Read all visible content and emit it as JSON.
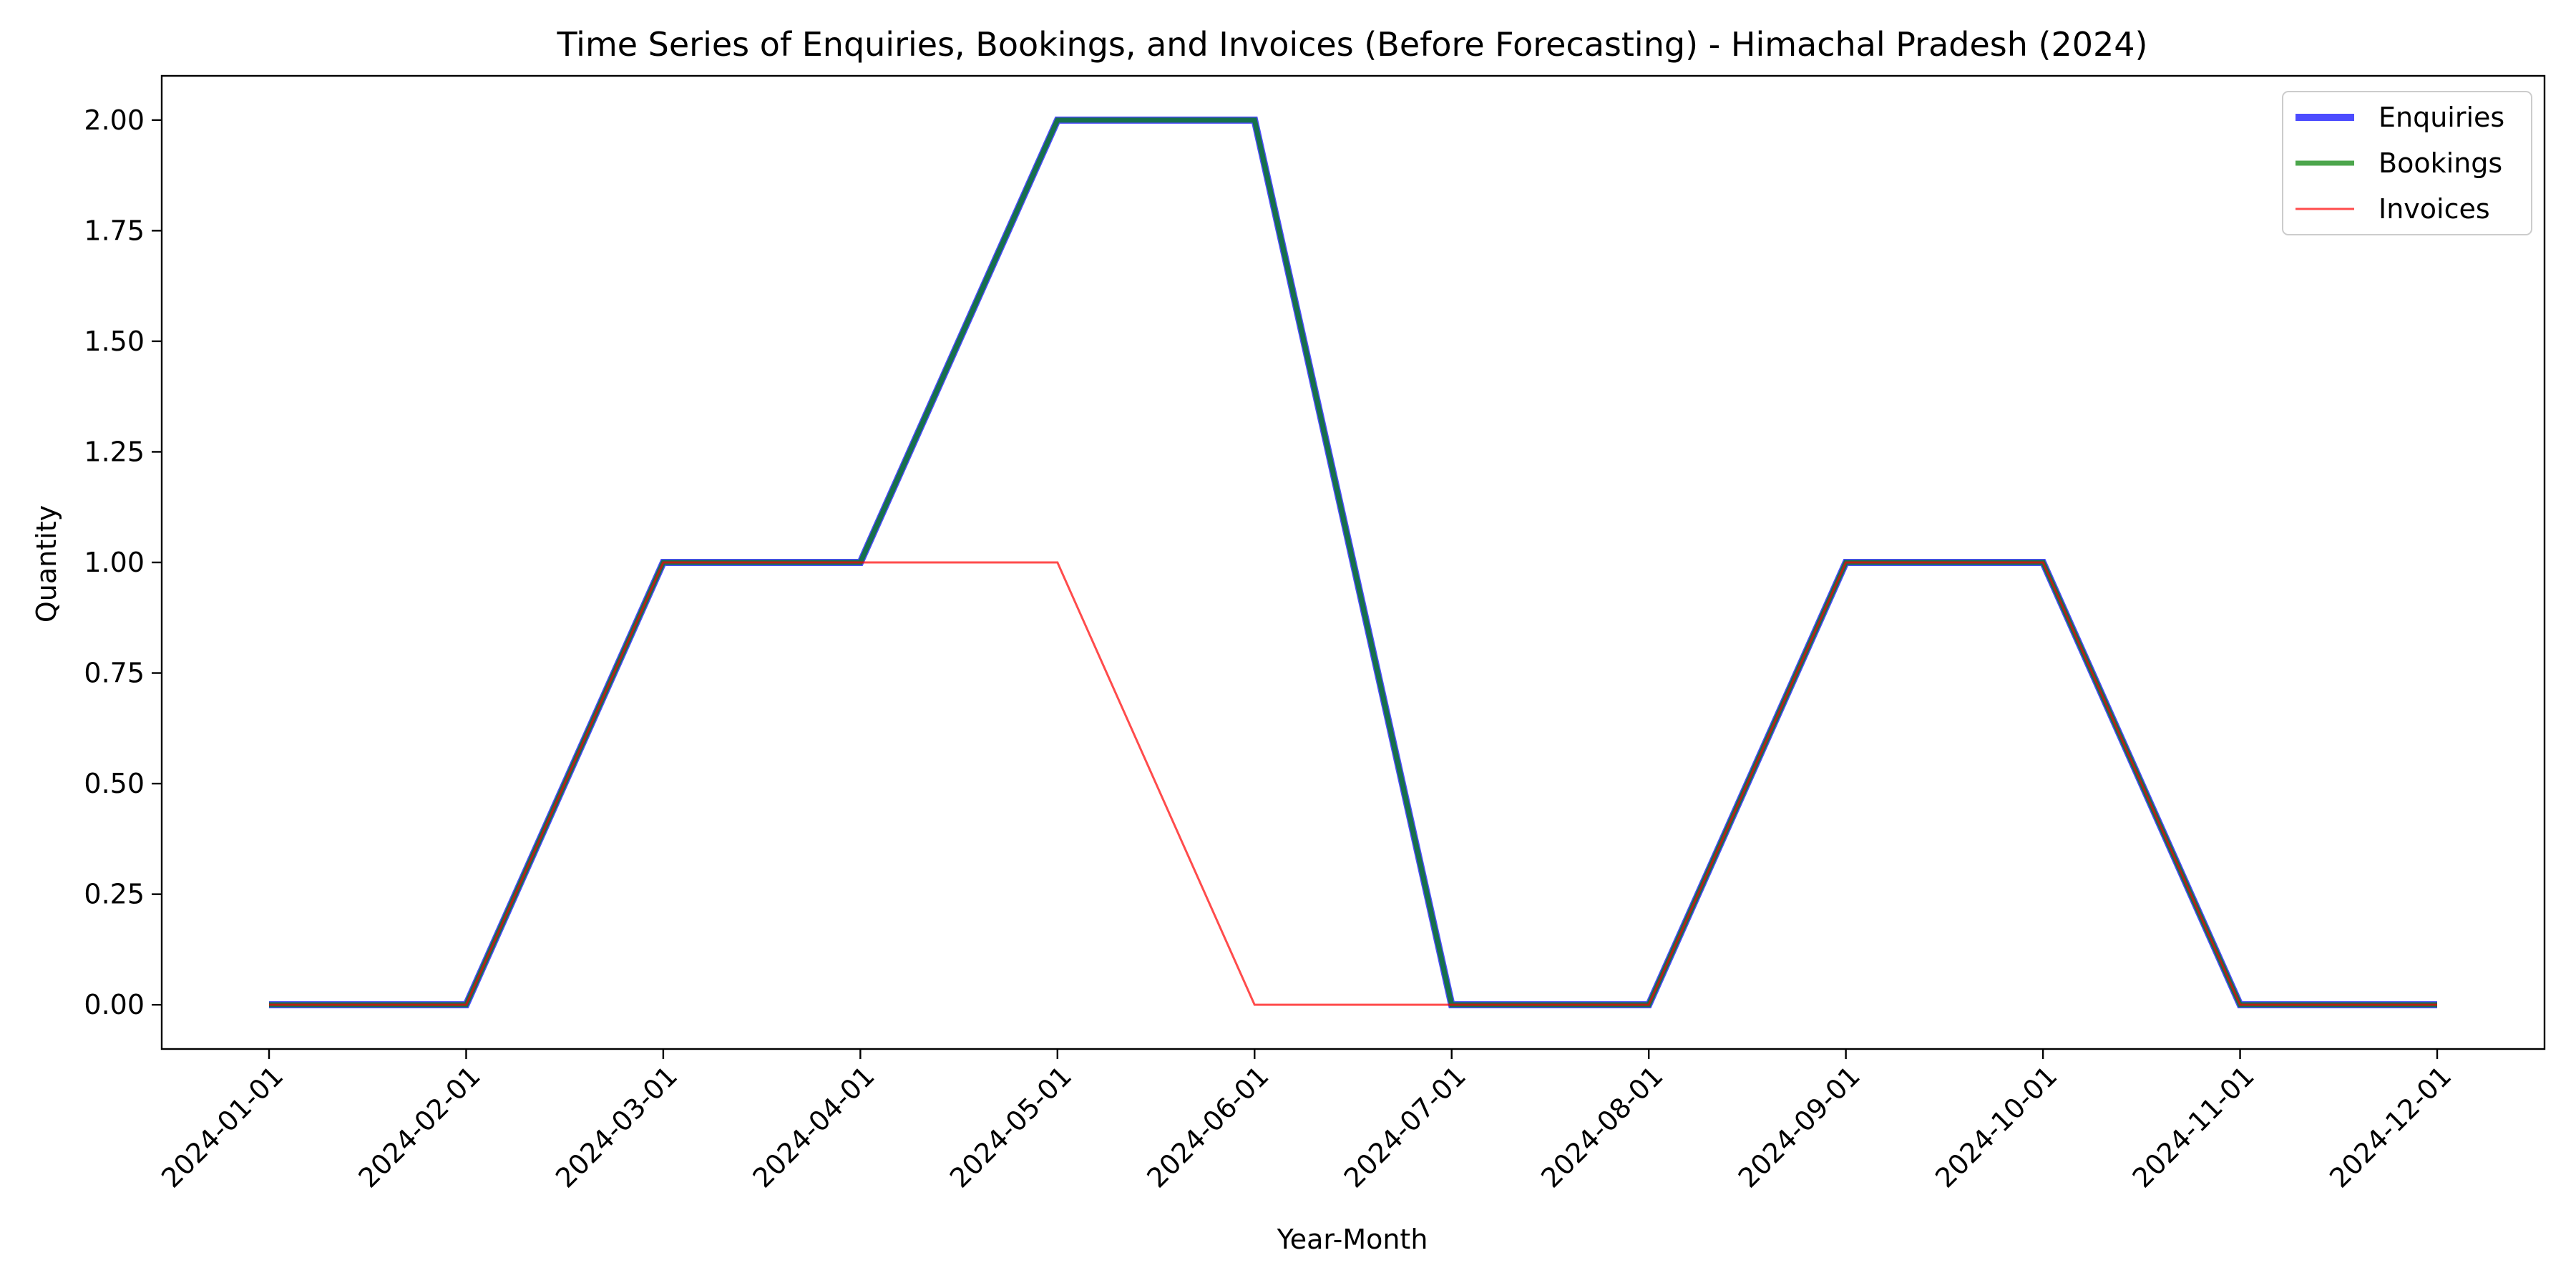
{
  "chart_data": {
    "type": "line",
    "title": "Time Series of Enquiries, Bookings, and Invoices (Before Forecasting) - Himachal Pradesh (2024)",
    "xlabel": "Year-Month",
    "ylabel": "Quantity",
    "x": [
      "2024-01-01",
      "2024-02-01",
      "2024-03-01",
      "2024-04-01",
      "2024-05-01",
      "2024-06-01",
      "2024-07-01",
      "2024-08-01",
      "2024-09-01",
      "2024-10-01",
      "2024-11-01",
      "2024-12-01"
    ],
    "ylim": [
      -0.1,
      2.1
    ],
    "yticks": [
      "0.00",
      "0.25",
      "0.50",
      "0.75",
      "1.00",
      "1.25",
      "1.50",
      "1.75",
      "2.00"
    ],
    "grid": false,
    "legend_position": "top-right",
    "series": [
      {
        "name": "Enquiries",
        "color": "#0000ff",
        "opacity": 0.7,
        "values": [
          0,
          0,
          1,
          1,
          2,
          2,
          0,
          0,
          1,
          1,
          0,
          0
        ]
      },
      {
        "name": "Bookings",
        "color": "#008000",
        "opacity": 0.7,
        "values": [
          0,
          0,
          1,
          1,
          2,
          2,
          0,
          0,
          1,
          1,
          0,
          0
        ]
      },
      {
        "name": "Invoices",
        "color": "#ff0000",
        "opacity": 0.7,
        "values": [
          0,
          0,
          1,
          1,
          1,
          0,
          0,
          0,
          1,
          1,
          0,
          0
        ]
      }
    ]
  }
}
